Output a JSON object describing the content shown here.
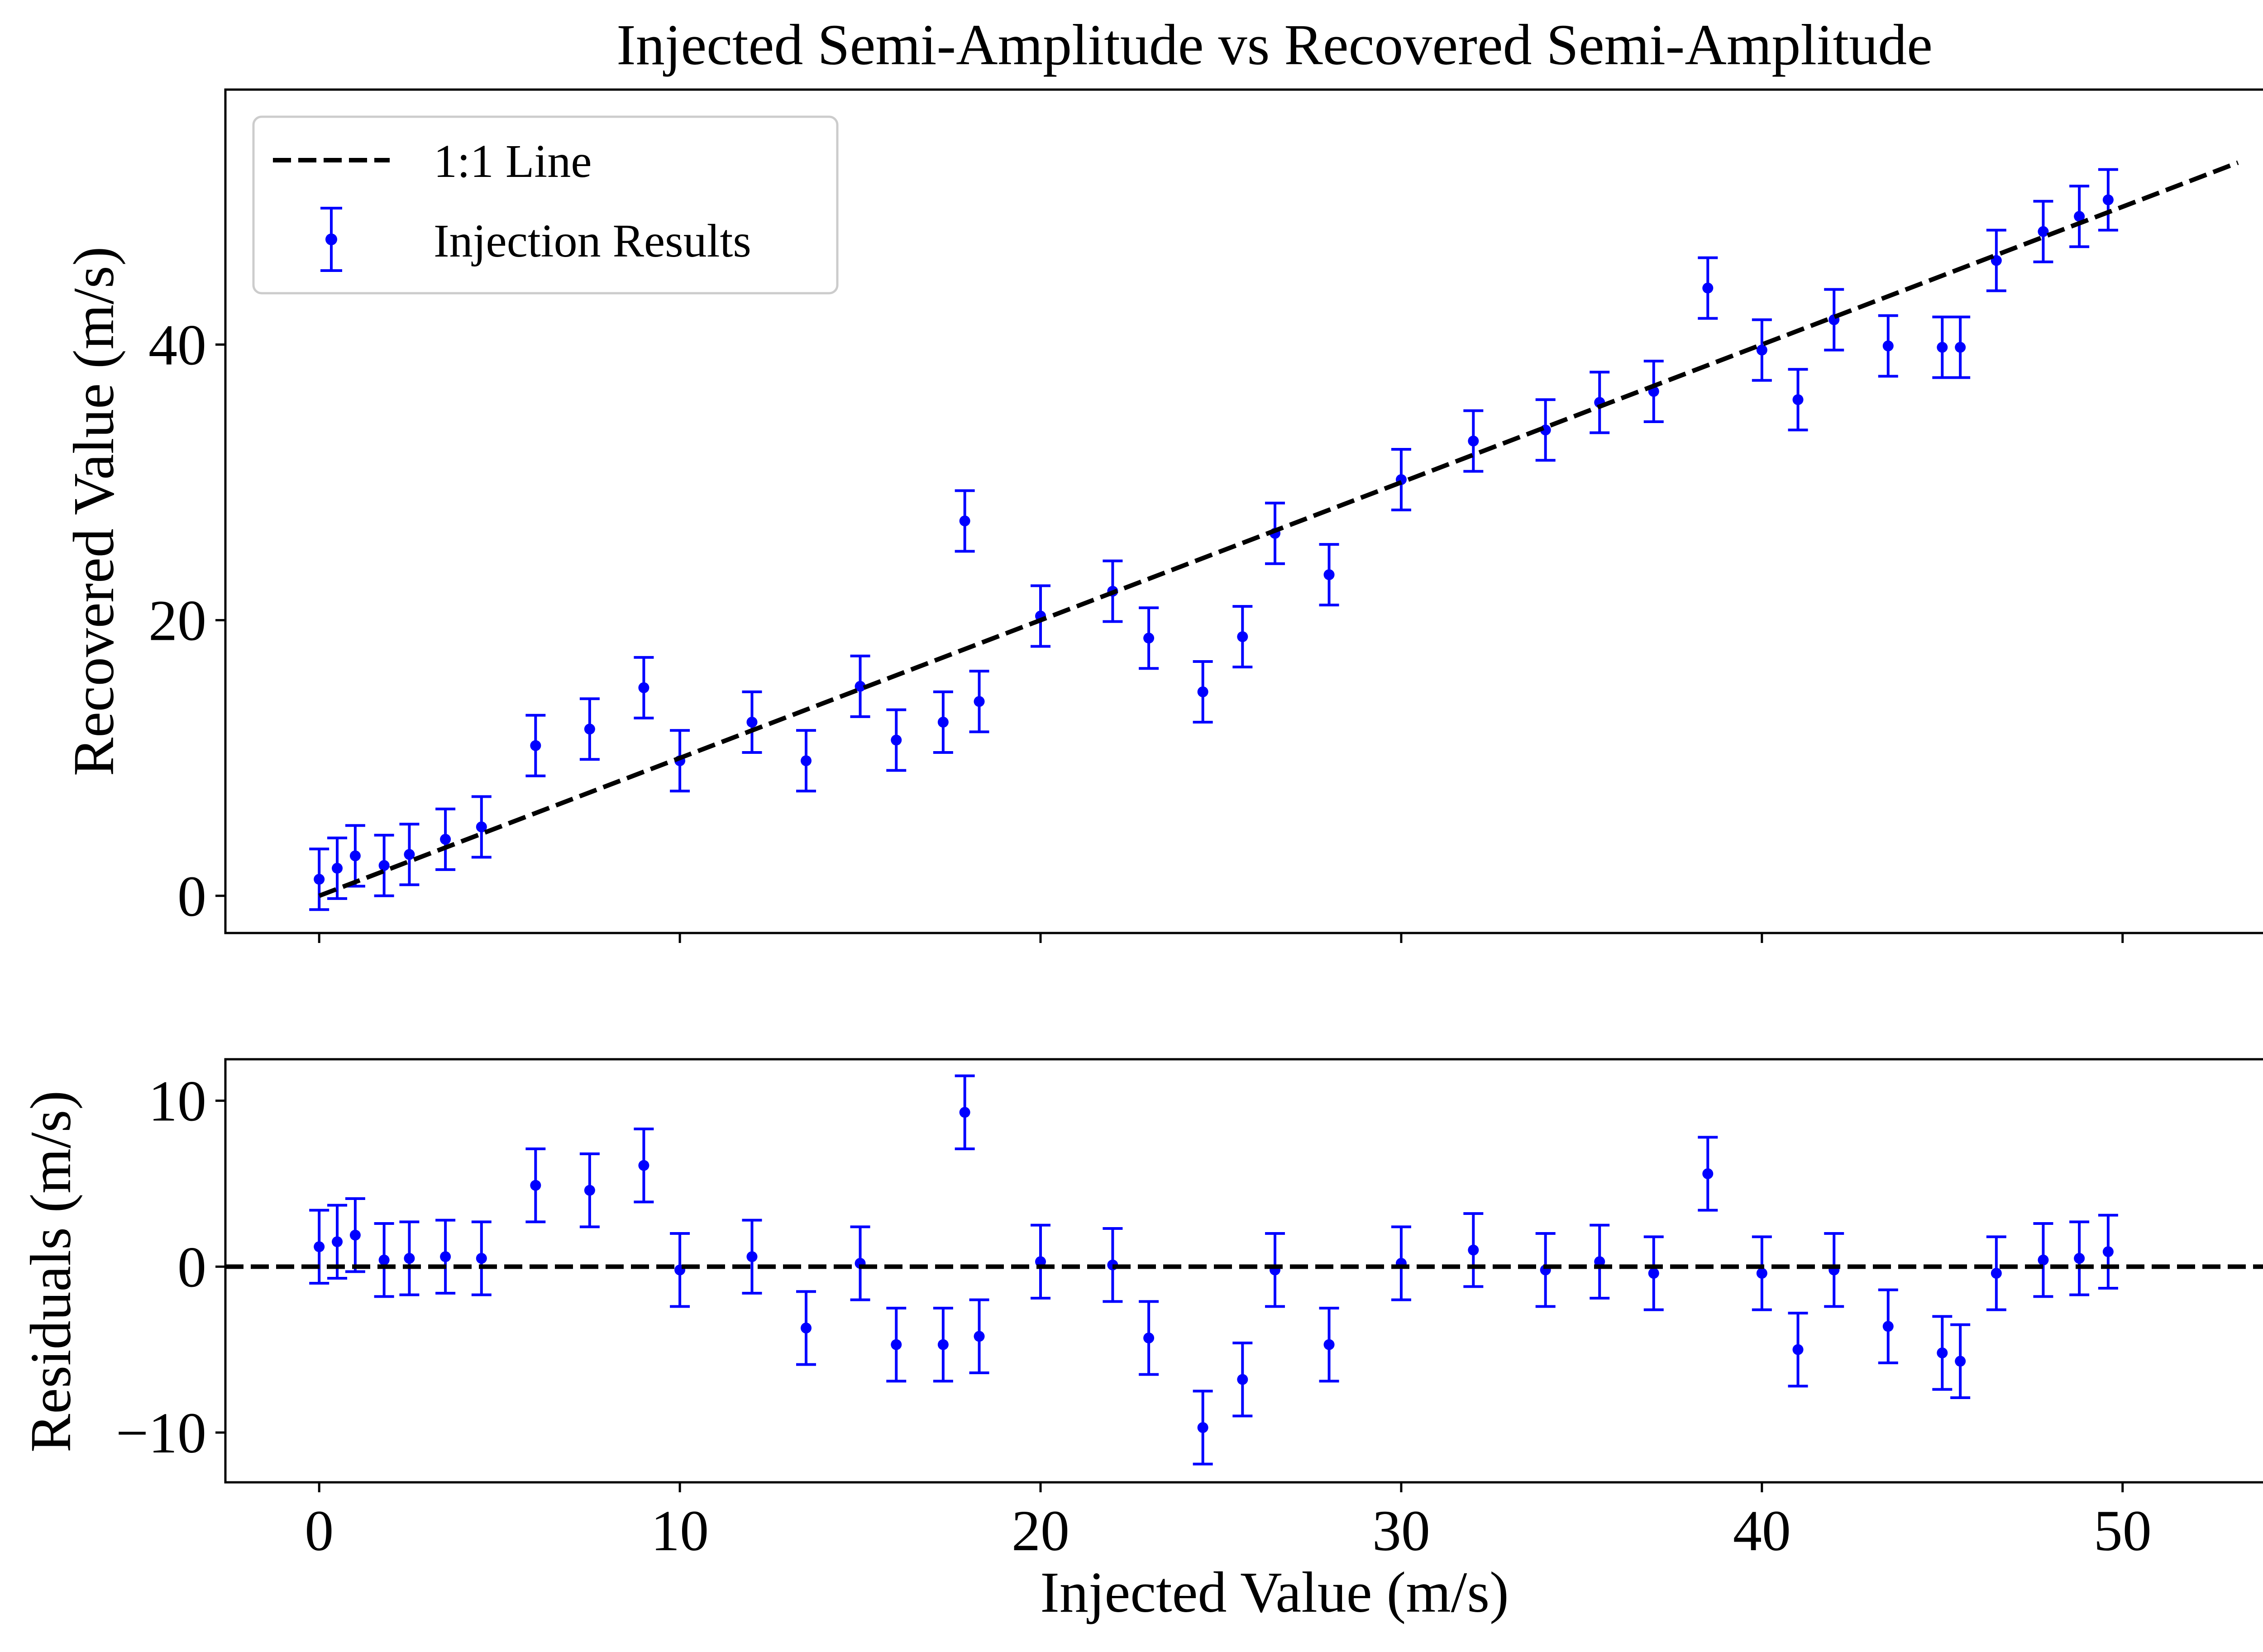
{
  "chart_data": [
    {
      "type": "scatter",
      "title": "Injected Semi-Amplitude vs Recovered Semi-Amplitude",
      "xlabel": "",
      "ylabel": "Recovered Value (m/s)",
      "xlim": [
        -2.6,
        55.7
      ],
      "ylim": [
        -2.7,
        58.5
      ],
      "xticks": [
        0,
        10,
        20,
        30,
        40,
        50
      ],
      "xtick_labels_shown": false,
      "yticks": [
        0,
        20,
        40
      ],
      "ytick_labels": [
        "0",
        "20",
        "40"
      ],
      "grid": false,
      "legend": {
        "placement": "upper-left",
        "entries": [
          {
            "label": "1:1 Line",
            "style": "dashed-line",
            "color": "#000000"
          },
          {
            "label": "Injection Results",
            "style": "errorbar-point",
            "color": "#0000ff"
          }
        ]
      },
      "reference_line": {
        "name": "1:1 Line",
        "x": [
          0,
          53.2
        ],
        "y": [
          0,
          53.2
        ],
        "color": "#000000",
        "dash": "dashed"
      },
      "series": [
        {
          "name": "Injection Results",
          "color": "#0000ff",
          "typical_error": 2.2,
          "points": [
            {
              "x": 0.0,
              "y": 1.2
            },
            {
              "x": 0.5,
              "y": 2.0
            },
            {
              "x": 1.0,
              "y": 2.9
            },
            {
              "x": 1.8,
              "y": 2.2
            },
            {
              "x": 2.5,
              "y": 3.0
            },
            {
              "x": 3.5,
              "y": 4.1
            },
            {
              "x": 4.5,
              "y": 5.0
            },
            {
              "x": 6.0,
              "y": 10.9
            },
            {
              "x": 7.5,
              "y": 12.1
            },
            {
              "x": 9.0,
              "y": 15.1
            },
            {
              "x": 10.0,
              "y": 9.8
            },
            {
              "x": 12.0,
              "y": 12.6
            },
            {
              "x": 13.5,
              "y": 9.8
            },
            {
              "x": 15.0,
              "y": 15.2
            },
            {
              "x": 16.0,
              "y": 11.3
            },
            {
              "x": 17.3,
              "y": 12.6
            },
            {
              "x": 17.9,
              "y": 27.2
            },
            {
              "x": 18.3,
              "y": 14.1
            },
            {
              "x": 20.0,
              "y": 20.3
            },
            {
              "x": 22.0,
              "y": 22.1
            },
            {
              "x": 23.0,
              "y": 18.7
            },
            {
              "x": 24.5,
              "y": 14.8
            },
            {
              "x": 25.6,
              "y": 18.8
            },
            {
              "x": 26.5,
              "y": 26.3
            },
            {
              "x": 28.0,
              "y": 23.3
            },
            {
              "x": 30.0,
              "y": 30.2
            },
            {
              "x": 32.0,
              "y": 33.0
            },
            {
              "x": 34.0,
              "y": 33.8
            },
            {
              "x": 35.5,
              "y": 35.8
            },
            {
              "x": 37.0,
              "y": 36.6
            },
            {
              "x": 38.5,
              "y": 44.1
            },
            {
              "x": 40.0,
              "y": 39.6
            },
            {
              "x": 41.0,
              "y": 36.0
            },
            {
              "x": 42.0,
              "y": 41.8
            },
            {
              "x": 43.5,
              "y": 39.9
            },
            {
              "x": 45.0,
              "y": 39.8
            },
            {
              "x": 45.5,
              "y": 39.8
            },
            {
              "x": 46.5,
              "y": 46.1
            },
            {
              "x": 47.8,
              "y": 48.2
            },
            {
              "x": 48.8,
              "y": 49.3
            },
            {
              "x": 49.6,
              "y": 50.5
            }
          ]
        }
      ]
    },
    {
      "type": "scatter",
      "title": "",
      "xlabel": "Injected Value (m/s)",
      "ylabel": "Residuals (m/s)",
      "xlim": [
        -2.6,
        55.7
      ],
      "ylim": [
        -13.0,
        12.5
      ],
      "xticks": [
        0,
        10,
        20,
        30,
        40,
        50
      ],
      "xtick_labels": [
        "0",
        "10",
        "20",
        "30",
        "40",
        "50"
      ],
      "yticks": [
        -10,
        0,
        10
      ],
      "ytick_labels": [
        "−10",
        "0",
        "10"
      ],
      "grid": false,
      "reference_line": {
        "y": 0,
        "color": "#000000",
        "dash": "dashed"
      },
      "series": [
        {
          "name": "Residuals",
          "color": "#0000ff",
          "typical_error": 2.2,
          "points": [
            {
              "x": 0.0,
              "y": 1.2
            },
            {
              "x": 0.5,
              "y": 1.5
            },
            {
              "x": 1.0,
              "y": 1.9
            },
            {
              "x": 1.8,
              "y": 0.4
            },
            {
              "x": 2.5,
              "y": 0.5
            },
            {
              "x": 3.5,
              "y": 0.6
            },
            {
              "x": 4.5,
              "y": 0.5
            },
            {
              "x": 6.0,
              "y": 4.9
            },
            {
              "x": 7.5,
              "y": 4.6
            },
            {
              "x": 9.0,
              "y": 6.1
            },
            {
              "x": 10.0,
              "y": -0.2
            },
            {
              "x": 12.0,
              "y": 0.6
            },
            {
              "x": 13.5,
              "y": -3.7
            },
            {
              "x": 15.0,
              "y": 0.2
            },
            {
              "x": 16.0,
              "y": -4.7
            },
            {
              "x": 17.3,
              "y": -4.7
            },
            {
              "x": 17.9,
              "y": 9.3
            },
            {
              "x": 18.3,
              "y": -4.2
            },
            {
              "x": 20.0,
              "y": 0.3
            },
            {
              "x": 22.0,
              "y": 0.1
            },
            {
              "x": 23.0,
              "y": -4.3
            },
            {
              "x": 24.5,
              "y": -9.7
            },
            {
              "x": 25.6,
              "y": -6.8
            },
            {
              "x": 26.5,
              "y": -0.2
            },
            {
              "x": 28.0,
              "y": -4.7
            },
            {
              "x": 30.0,
              "y": 0.2
            },
            {
              "x": 32.0,
              "y": 1.0
            },
            {
              "x": 34.0,
              "y": -0.2
            },
            {
              "x": 35.5,
              "y": 0.3
            },
            {
              "x": 37.0,
              "y": -0.4
            },
            {
              "x": 38.5,
              "y": 5.6
            },
            {
              "x": 40.0,
              "y": -0.4
            },
            {
              "x": 41.0,
              "y": -5.0
            },
            {
              "x": 42.0,
              "y": -0.2
            },
            {
              "x": 43.5,
              "y": -3.6
            },
            {
              "x": 45.0,
              "y": -5.2
            },
            {
              "x": 45.5,
              "y": -5.7
            },
            {
              "x": 46.5,
              "y": -0.4
            },
            {
              "x": 47.8,
              "y": 0.4
            },
            {
              "x": 48.8,
              "y": 0.5
            },
            {
              "x": 49.6,
              "y": 0.9
            }
          ]
        }
      ]
    }
  ]
}
